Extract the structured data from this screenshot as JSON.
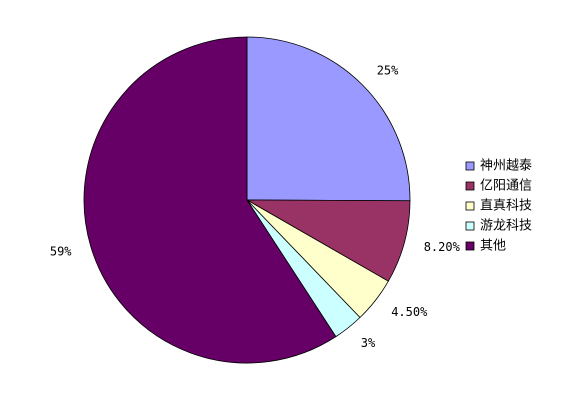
{
  "chart_data": {
    "type": "pie",
    "categories": [
      "神州越泰",
      "亿阳通信",
      "直真科技",
      "游龙科技",
      "其他"
    ],
    "values": [
      25,
      8.2,
      4.5,
      3,
      59
    ],
    "value_labels": [
      "25%",
      "8.20%",
      "4.50%",
      "3%",
      "59%"
    ],
    "colors": [
      "#9999ff",
      "#993366",
      "#ffffcc",
      "#ccffff",
      "#660066"
    ],
    "legend": "right"
  }
}
